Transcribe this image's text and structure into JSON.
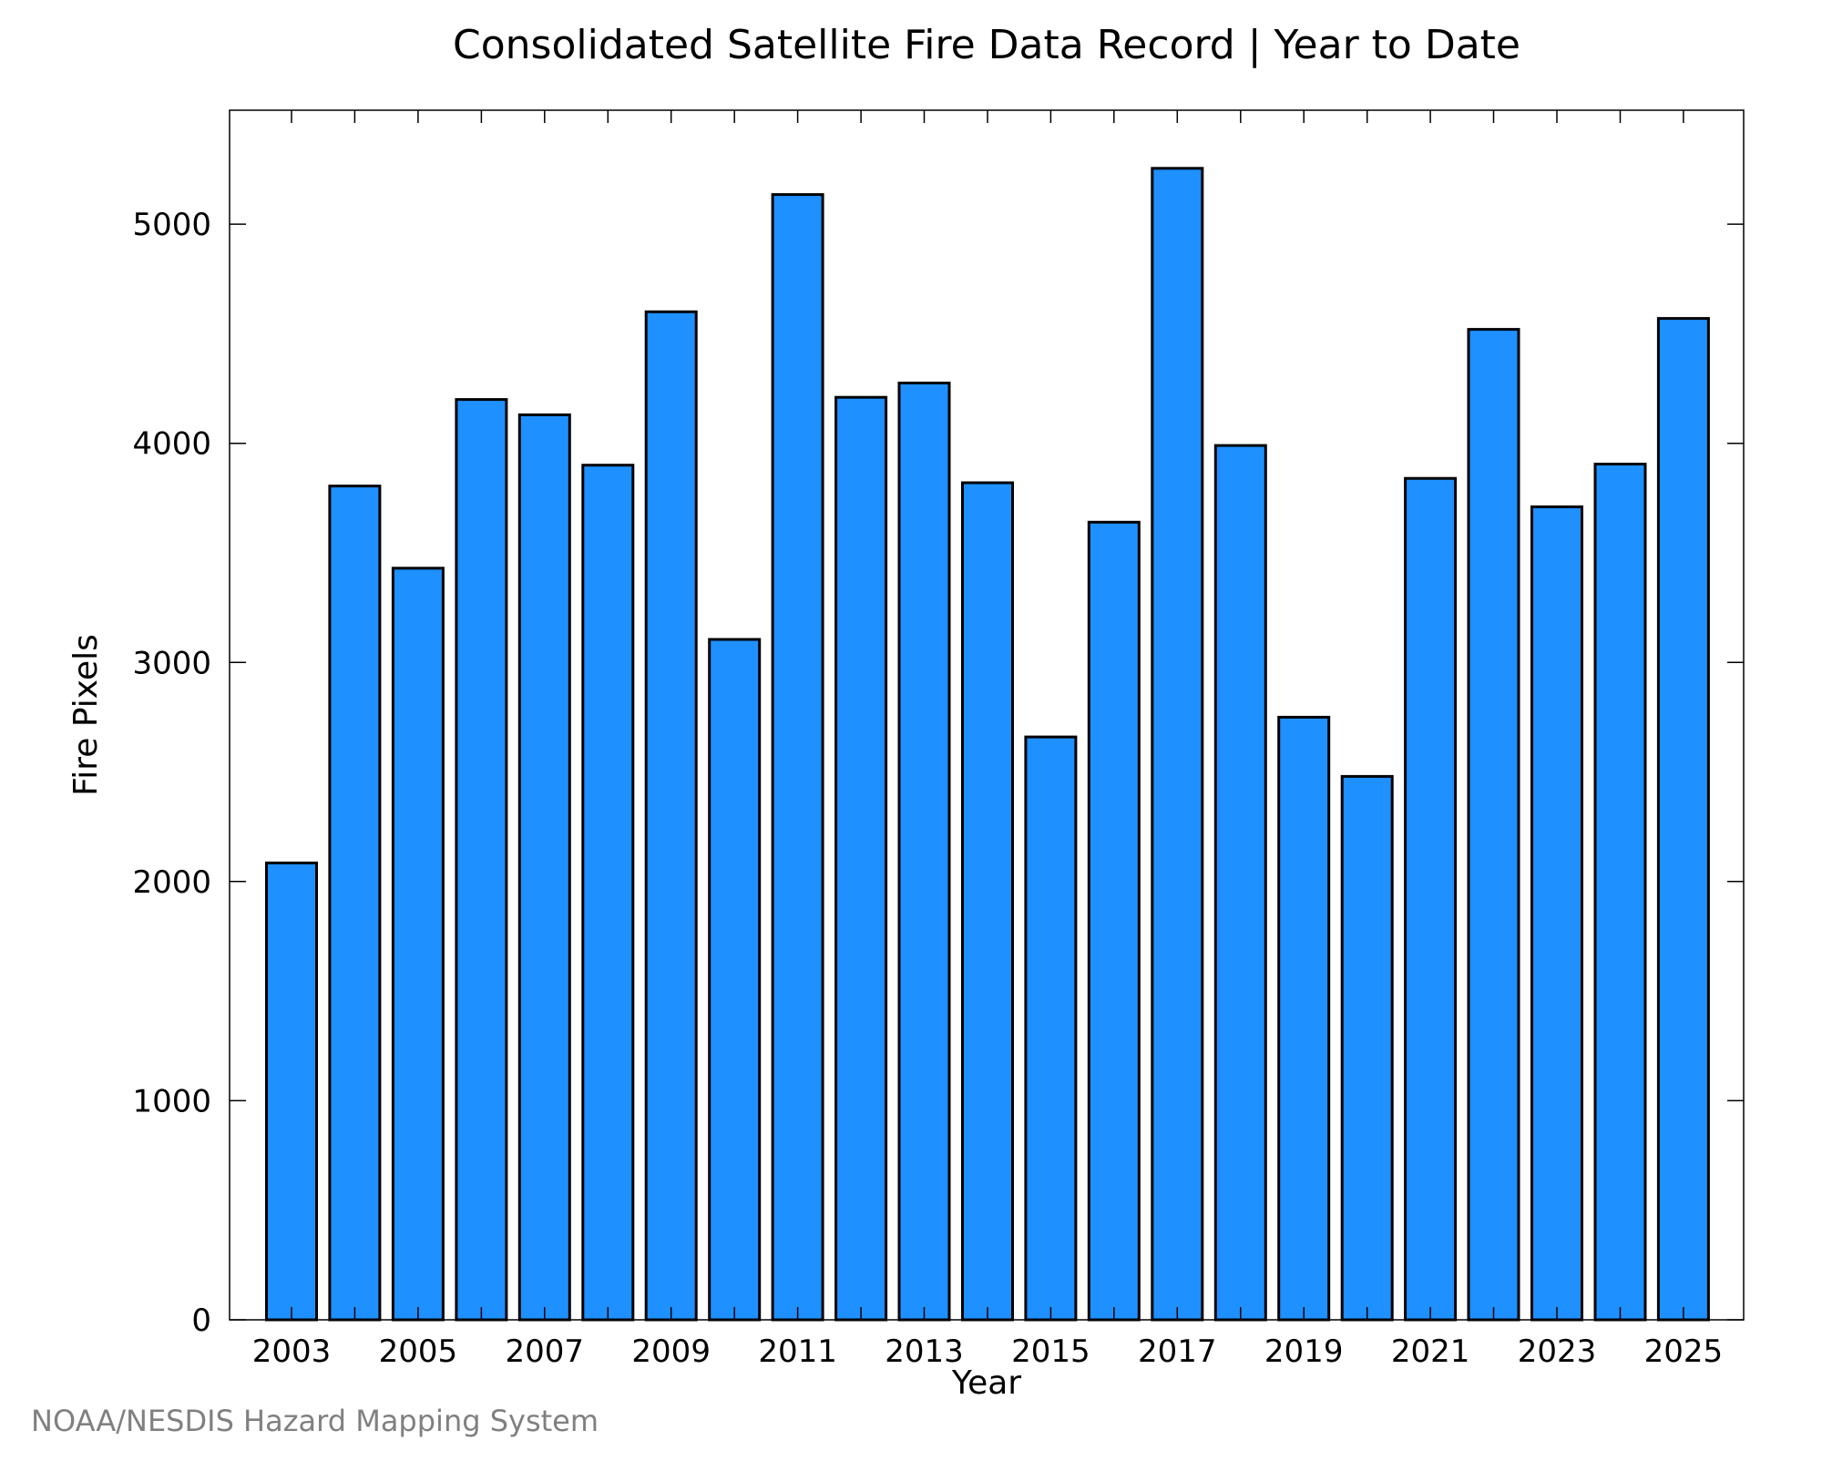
{
  "chart_data": {
    "type": "bar",
    "title": "Consolidated Satellite Fire Data Record | Year to Date",
    "xlabel": "Year",
    "ylabel": "Fire Pixels",
    "categories": [
      "2003",
      "2004",
      "2005",
      "2006",
      "2007",
      "2008",
      "2009",
      "2010",
      "2011",
      "2012",
      "2013",
      "2014",
      "2015",
      "2016",
      "2017",
      "2018",
      "2019",
      "2020",
      "2021",
      "2022",
      "2023",
      "2024",
      "2025"
    ],
    "values": [
      2085,
      3805,
      3430,
      4200,
      4130,
      3900,
      4600,
      3105,
      5135,
      4210,
      4275,
      3820,
      2660,
      3640,
      5255,
      3990,
      2750,
      2480,
      3840,
      4520,
      3710,
      3905,
      4570
    ],
    "x_tick_labels": [
      "2003",
      "2005",
      "2007",
      "2009",
      "2011",
      "2013",
      "2015",
      "2017",
      "2019",
      "2021",
      "2023",
      "2025"
    ],
    "y_ticks": [
      0,
      1000,
      2000,
      3000,
      4000,
      5000
    ],
    "y_tick_labels": [
      "0",
      "1000",
      "2000",
      "3000",
      "4000",
      "5000"
    ],
    "ylim": [
      0,
      5520
    ],
    "grid": false,
    "colors": {
      "bar_fill": "#1E90FF",
      "bar_stroke": "#000000",
      "axis": "#000000",
      "credit": "#808080"
    }
  },
  "footer": {
    "credit": "NOAA/NESDIS Hazard Mapping System"
  }
}
